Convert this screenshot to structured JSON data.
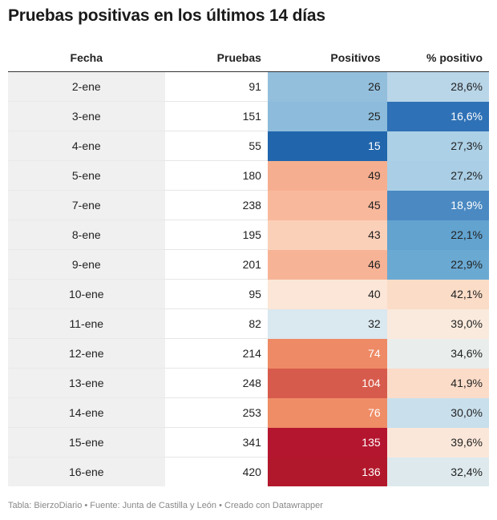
{
  "title": "Pruebas positivas en los últimos 14 días",
  "headers": [
    "Fecha",
    "Pruebas",
    "Positivos",
    "% positivo"
  ],
  "footer": "Tabla: BierzoDiario • Fuente: Junta de Castilla y León • Creado con Datawrapper",
  "chart_data": {
    "type": "table",
    "title": "Pruebas positivas en los últimos 14 días",
    "columns": [
      "Fecha",
      "Pruebas",
      "Positivos",
      "% positivo"
    ],
    "rows": [
      {
        "fecha": "2-ene",
        "pruebas": "91",
        "positivos": "26",
        "pct": "28,6%",
        "pos_color": "#93bfdd",
        "pos_text": "#222222",
        "pct_color": "#b9d5e8",
        "pct_text": "#222222"
      },
      {
        "fecha": "3-ene",
        "pruebas": "151",
        "positivos": "25",
        "pct": "16,6%",
        "pos_color": "#8cbbdb",
        "pos_text": "#222222",
        "pct_color": "#2f71b6",
        "pct_text": "#ffffff"
      },
      {
        "fecha": "4-ene",
        "pruebas": "55",
        "positivos": "15",
        "pct": "27,3%",
        "pos_color": "#2166ac",
        "pos_text": "#ffffff",
        "pct_color": "#acd0e6",
        "pct_text": "#222222"
      },
      {
        "fecha": "5-ene",
        "pruebas": "180",
        "positivos": "49",
        "pct": "27,2%",
        "pos_color": "#f6ae90",
        "pos_text": "#222222",
        "pct_color": "#a9cee5",
        "pct_text": "#222222"
      },
      {
        "fecha": "7-ene",
        "pruebas": "238",
        "positivos": "45",
        "pct": "18,9%",
        "pos_color": "#f8b89c",
        "pos_text": "#222222",
        "pct_color": "#4a89c2",
        "pct_text": "#ffffff"
      },
      {
        "fecha": "8-ene",
        "pruebas": "195",
        "positivos": "43",
        "pct": "22,1%",
        "pos_color": "#fbd0b9",
        "pos_text": "#222222",
        "pct_color": "#62a3cf",
        "pct_text": "#222222"
      },
      {
        "fecha": "9-ene",
        "pruebas": "201",
        "positivos": "46",
        "pct": "22,9%",
        "pos_color": "#f7b396",
        "pos_text": "#222222",
        "pct_color": "#6aa9d2",
        "pct_text": "#222222"
      },
      {
        "fecha": "10-ene",
        "pruebas": "95",
        "positivos": "40",
        "pct": "42,1%",
        "pos_color": "#fbe6d7",
        "pos_text": "#222222",
        "pct_color": "#fbdcc7",
        "pct_text": "#222222"
      },
      {
        "fecha": "11-ene",
        "pruebas": "82",
        "positivos": "32",
        "pct": "39,0%",
        "pos_color": "#dae8ef",
        "pos_text": "#222222",
        "pct_color": "#f9eadd",
        "pct_text": "#222222"
      },
      {
        "fecha": "12-ene",
        "pruebas": "214",
        "positivos": "74",
        "pct": "34,6%",
        "pos_color": "#ee8a65",
        "pos_text": "#ffffff",
        "pct_color": "#e9eeec",
        "pct_text": "#222222"
      },
      {
        "fecha": "13-ene",
        "pruebas": "248",
        "positivos": "104",
        "pct": "41,9%",
        "pos_color": "#d75b4c",
        "pos_text": "#ffffff",
        "pct_color": "#fbdcc8",
        "pct_text": "#222222"
      },
      {
        "fecha": "14-ene",
        "pruebas": "253",
        "positivos": "76",
        "pct": "30,0%",
        "pos_color": "#ef8d66",
        "pos_text": "#ffffff",
        "pct_color": "#c9dfec",
        "pct_text": "#222222"
      },
      {
        "fecha": "15-ene",
        "pruebas": "341",
        "positivos": "135",
        "pct": "39,6%",
        "pos_color": "#b5162f",
        "pos_text": "#ffffff",
        "pct_color": "#fae7d9",
        "pct_text": "#222222"
      },
      {
        "fecha": "16-ene",
        "pruebas": "420",
        "positivos": "136",
        "pct": "32,4%",
        "pos_color": "#b2182b",
        "pos_text": "#ffffff",
        "pct_color": "#dde9ed",
        "pct_text": "#222222"
      }
    ]
  }
}
